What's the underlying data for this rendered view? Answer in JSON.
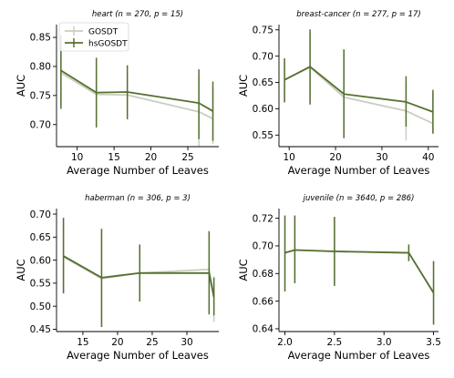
{
  "colors": {
    "gosdt": "#c9cec0",
    "hsgosdt": "#55702f",
    "axis": "#000000"
  },
  "chart_data": [
    {
      "type": "line",
      "title": "heart (n = 270, p = 15)",
      "xlabel": "Average Number of Leaves",
      "ylabel": "AUC",
      "xlim": [
        7.2,
        29.2
      ],
      "ylim": [
        0.662,
        0.872
      ],
      "xticks": [
        10,
        15,
        20,
        25
      ],
      "yticks": [
        0.7,
        0.75,
        0.8,
        0.85
      ],
      "ytick_labels": [
        "0.70",
        "0.75",
        "0.80",
        "0.85"
      ],
      "legend": {
        "position": "top-left",
        "entries": [
          "GOSDT",
          "hsGOSDT"
        ]
      },
      "series": [
        {
          "name": "GOSDT",
          "color": "#c9cec0",
          "points": [
            {
              "x": 7.8,
              "y": 0.789,
              "lo": 0.733,
              "hi": 0.848
            },
            {
              "x": 12.6,
              "y": 0.752,
              "lo": 0.705,
              "hi": 0.797
            },
            {
              "x": 16.8,
              "y": 0.751,
              "lo": 0.716,
              "hi": 0.79
            },
            {
              "x": 26.5,
              "y": 0.722,
              "lo": 0.663,
              "hi": 0.785
            },
            {
              "x": 28.4,
              "y": 0.71,
              "lo": 0.667,
              "hi": 0.764
            }
          ]
        },
        {
          "name": "hsGOSDT",
          "color": "#55702f",
          "points": [
            {
              "x": 7.8,
              "y": 0.793,
              "lo": 0.727,
              "hi": 0.853
            },
            {
              "x": 12.6,
              "y": 0.755,
              "lo": 0.695,
              "hi": 0.815
            },
            {
              "x": 16.8,
              "y": 0.756,
              "lo": 0.709,
              "hi": 0.802
            },
            {
              "x": 26.5,
              "y": 0.737,
              "lo": 0.675,
              "hi": 0.795
            },
            {
              "x": 28.4,
              "y": 0.723,
              "lo": 0.672,
              "hi": 0.774
            }
          ]
        }
      ]
    },
    {
      "type": "line",
      "title": "breast-cancer (n = 277, p = 17)",
      "xlabel": "Average Number of Leaves",
      "ylabel": "AUC",
      "xlim": [
        7.8,
        42.2
      ],
      "ylim": [
        0.528,
        0.76
      ],
      "xticks": [
        10,
        20,
        30,
        40
      ],
      "yticks": [
        0.55,
        0.6,
        0.65,
        0.7,
        0.75
      ],
      "ytick_labels": [
        "0.55",
        "0.60",
        "0.65",
        "0.70",
        "0.75"
      ],
      "legend": null,
      "series": [
        {
          "name": "GOSDT",
          "color": "#c9cec0",
          "points": [
            {
              "x": 9.0,
              "y": 0.655,
              "lo": 0.615,
              "hi": 0.694
            },
            {
              "x": 14.5,
              "y": 0.679,
              "lo": 0.612,
              "hi": 0.745
            },
            {
              "x": 21.8,
              "y": 0.622,
              "lo": 0.548,
              "hi": 0.705
            },
            {
              "x": 35.2,
              "y": 0.596,
              "lo": 0.54,
              "hi": 0.65
            },
            {
              "x": 41.0,
              "y": 0.572,
              "lo": 0.552,
              "hi": 0.63
            }
          ]
        },
        {
          "name": "hsGOSDT",
          "color": "#55702f",
          "points": [
            {
              "x": 9.0,
              "y": 0.655,
              "lo": 0.612,
              "hi": 0.696
            },
            {
              "x": 14.5,
              "y": 0.68,
              "lo": 0.608,
              "hi": 0.751
            },
            {
              "x": 21.8,
              "y": 0.628,
              "lo": 0.544,
              "hi": 0.713
            },
            {
              "x": 35.2,
              "y": 0.613,
              "lo": 0.566,
              "hi": 0.662
            },
            {
              "x": 41.0,
              "y": 0.594,
              "lo": 0.553,
              "hi": 0.636
            }
          ]
        }
      ]
    },
    {
      "type": "line",
      "title": "haberman (n = 306, p = 3)",
      "xlabel": "Average Number of Leaves",
      "ylabel": "AUC",
      "xlim": [
        11.2,
        34.6
      ],
      "ylim": [
        0.445,
        0.712
      ],
      "xticks": [
        15,
        20,
        25,
        30
      ],
      "yticks": [
        0.45,
        0.5,
        0.55,
        0.6,
        0.65,
        0.7
      ],
      "ytick_labels": [
        "0.45",
        "0.50",
        "0.55",
        "0.60",
        "0.65",
        "0.70"
      ],
      "legend": null,
      "series": [
        {
          "name": "GOSDT",
          "color": "#c9cec0",
          "points": [
            {
              "x": 12.2,
              "y": 0.607,
              "lo": 0.527,
              "hi": 0.69
            },
            {
              "x": 17.7,
              "y": 0.56,
              "lo": 0.455,
              "hi": 0.668
            },
            {
              "x": 23.2,
              "y": 0.572,
              "lo": 0.512,
              "hi": 0.634
            },
            {
              "x": 33.2,
              "y": 0.58,
              "lo": 0.487,
              "hi": 0.662
            },
            {
              "x": 33.9,
              "y": 0.522,
              "lo": 0.466,
              "hi": 0.565
            }
          ]
        },
        {
          "name": "hsGOSDT",
          "color": "#55702f",
          "points": [
            {
              "x": 12.2,
              "y": 0.609,
              "lo": 0.528,
              "hi": 0.692
            },
            {
              "x": 17.7,
              "y": 0.562,
              "lo": 0.455,
              "hi": 0.668
            },
            {
              "x": 23.2,
              "y": 0.572,
              "lo": 0.51,
              "hi": 0.634
            },
            {
              "x": 33.2,
              "y": 0.572,
              "lo": 0.482,
              "hi": 0.663
            },
            {
              "x": 33.9,
              "y": 0.519,
              "lo": 0.48,
              "hi": 0.562
            }
          ]
        }
      ]
    },
    {
      "type": "line",
      "title": "juvenile (n = 3640, p = 286)",
      "xlabel": "Average Number of Leaves",
      "ylabel": "AUC",
      "xlim": [
        1.94,
        3.55
      ],
      "ylim": [
        0.638,
        0.727
      ],
      "xticks": [
        2.0,
        2.5,
        3.0,
        3.5
      ],
      "xtick_labels": [
        "2.0",
        "2.5",
        "3.0",
        "3.5"
      ],
      "yticks": [
        0.64,
        0.66,
        0.68,
        0.7,
        0.72
      ],
      "ytick_labels": [
        "0.64",
        "0.66",
        "0.68",
        "0.70",
        "0.72"
      ],
      "legend": null,
      "series": [
        {
          "name": "GOSDT",
          "color": "#c9cec0",
          "points": [
            {
              "x": 2.0,
              "y": 0.695,
              "lo": 0.668,
              "hi": 0.722
            },
            {
              "x": 2.1,
              "y": 0.697,
              "lo": 0.673,
              "hi": 0.722
            },
            {
              "x": 2.5,
              "y": 0.696,
              "lo": 0.672,
              "hi": 0.721
            },
            {
              "x": 3.25,
              "y": 0.695,
              "lo": 0.689,
              "hi": 0.701
            },
            {
              "x": 3.5,
              "y": 0.666,
              "lo": 0.643,
              "hi": 0.689
            }
          ]
        },
        {
          "name": "hsGOSDT",
          "color": "#55702f",
          "points": [
            {
              "x": 2.0,
              "y": 0.695,
              "lo": 0.667,
              "hi": 0.722
            },
            {
              "x": 2.1,
              "y": 0.697,
              "lo": 0.673,
              "hi": 0.722
            },
            {
              "x": 2.5,
              "y": 0.696,
              "lo": 0.671,
              "hi": 0.721
            },
            {
              "x": 3.25,
              "y": 0.695,
              "lo": 0.689,
              "hi": 0.701
            },
            {
              "x": 3.5,
              "y": 0.666,
              "lo": 0.643,
              "hi": 0.689
            }
          ]
        }
      ]
    }
  ]
}
